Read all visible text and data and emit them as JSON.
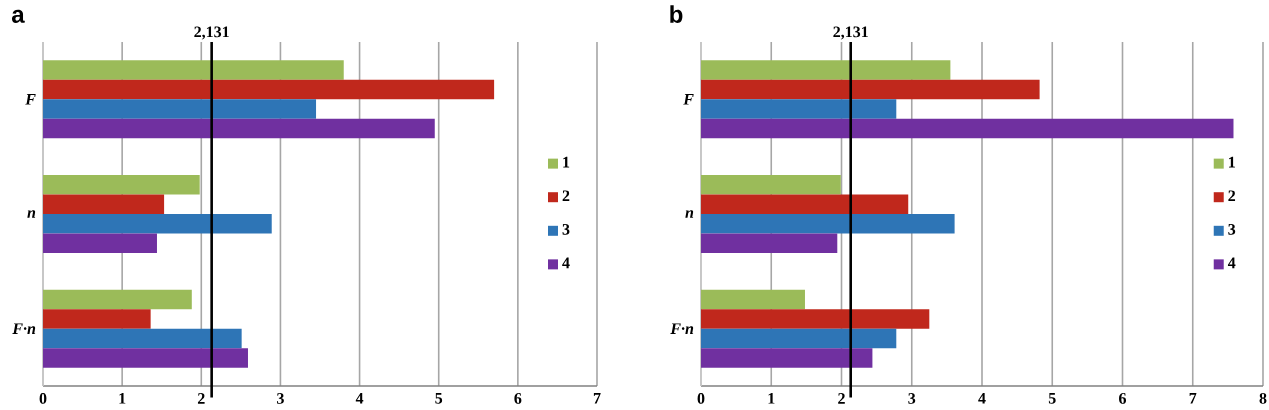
{
  "chart_data": [
    {
      "type": "bar",
      "title": "a",
      "orientation": "horizontal",
      "categories": [
        "F",
        "n",
        "F·n"
      ],
      "series": [
        {
          "name": "1",
          "color": "#9bbb59",
          "values": [
            3.8,
            1.98,
            1.88
          ]
        },
        {
          "name": "2",
          "color": "#c0281c",
          "values": [
            5.7,
            1.53,
            1.36
          ]
        },
        {
          "name": "3",
          "color": "#2e75b6",
          "values": [
            3.45,
            2.89,
            2.51
          ]
        },
        {
          "name": "4",
          "color": "#7030a0",
          "values": [
            4.95,
            1.44,
            2.59
          ]
        }
      ],
      "xlim": [
        0,
        7
      ],
      "xticks": [
        0,
        1,
        2,
        3,
        4,
        5,
        6,
        7
      ],
      "grid": "x",
      "legend": "right",
      "ref_lines": [
        {
          "axis": "x",
          "value": 2.131,
          "label": "2,131"
        }
      ]
    },
    {
      "type": "bar",
      "title": "b",
      "orientation": "horizontal",
      "categories": [
        "F",
        "n",
        "F·n"
      ],
      "series": [
        {
          "name": "1",
          "color": "#9bbb59",
          "values": [
            3.55,
            1.99,
            1.48
          ]
        },
        {
          "name": "2",
          "color": "#c0281c",
          "values": [
            4.82,
            2.95,
            3.25
          ]
        },
        {
          "name": "3",
          "color": "#2e75b6",
          "values": [
            2.78,
            3.61,
            2.78
          ]
        },
        {
          "name": "4",
          "color": "#7030a0",
          "values": [
            7.58,
            1.94,
            2.44
          ]
        }
      ],
      "xlim": [
        0,
        8
      ],
      "xticks": [
        0,
        1,
        2,
        3,
        4,
        5,
        6,
        7,
        8
      ],
      "grid": "x",
      "legend": "right",
      "ref_lines": [
        {
          "axis": "x",
          "value": 2.131,
          "label": "2,131"
        }
      ]
    }
  ]
}
